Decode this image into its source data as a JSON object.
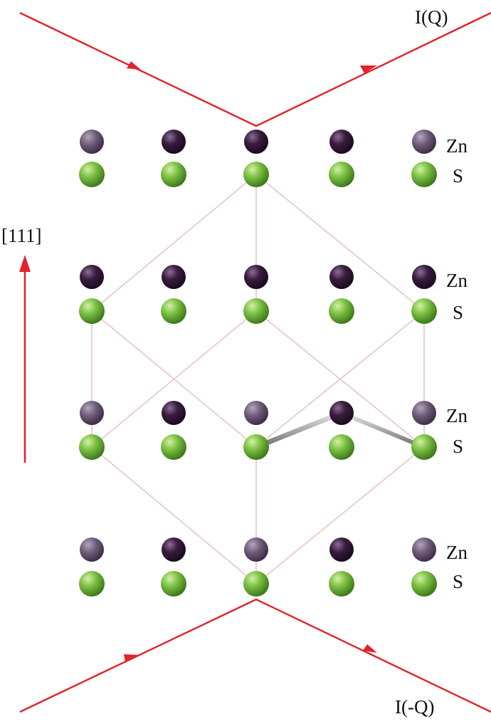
{
  "labels": {
    "top_beam": "I(Q)",
    "bottom_beam": "I(-Q)",
    "direction": "[111]",
    "zn": "Zn",
    "s": "S"
  },
  "rows": [
    {
      "layer": 1,
      "top": "Zn",
      "bottom": "S"
    },
    {
      "layer": 2,
      "top": "Zn",
      "bottom": "S"
    },
    {
      "layer": 3,
      "top": "Zn",
      "bottom": "S"
    },
    {
      "layer": 4,
      "top": "Zn",
      "bottom": "S"
    }
  ],
  "columns_per_row": 5,
  "colors": {
    "beam": "#e0242b",
    "zn_dark": "#3a1c3f",
    "zn_light": "#6e5a78",
    "s_green": "#7cc143",
    "lattice_line": "#e8c4c4",
    "bond": "#b8b8b8"
  }
}
